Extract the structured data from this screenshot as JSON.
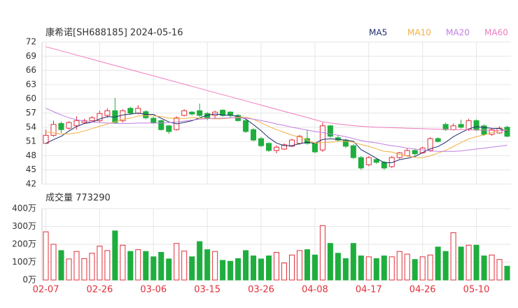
{
  "chart_data": [
    {
      "type": "candlestick",
      "title": "康希诺[SH688185] 2024-05-16",
      "categories": [
        "02-07",
        null,
        null,
        null,
        null,
        null,
        null,
        "02-26",
        null,
        null,
        null,
        null,
        null,
        null,
        "03-06",
        null,
        null,
        null,
        null,
        null,
        null,
        "03-15",
        null,
        null,
        null,
        null,
        null,
        null,
        "03-26",
        null,
        null,
        null,
        null,
        null,
        null,
        "04-08",
        null,
        null,
        null,
        null,
        null,
        null,
        "04-17",
        null,
        null,
        null,
        null,
        null,
        null,
        "04-26",
        null,
        null,
        null,
        null,
        null,
        null,
        "05-10",
        null,
        null,
        null,
        null
      ],
      "open": [
        50.6,
        52.3,
        54.8,
        53.8,
        54.3,
        55.0,
        55.4,
        55.4,
        56.5,
        57.5,
        55.4,
        58.0,
        57.0,
        57.3,
        55.9,
        55.4,
        54.3,
        53.5,
        56.5,
        57.2,
        57.5,
        56.9,
        56.5,
        57.6,
        57.2,
        56.5,
        55.4,
        53.5,
        51.6,
        50.6,
        49.1,
        49.4,
        50.0,
        50.6,
        51.6,
        50.6,
        49.2,
        54.3,
        51.8,
        51.3,
        50.1,
        47.6,
        46.1,
        47.2,
        46.6,
        45.7,
        47.6,
        48.0,
        49.1,
        48.6,
        49.1,
        51.6,
        54.6,
        53.5,
        54.6,
        53.5,
        55.4,
        54.3,
        52.5,
        52.8,
        54.0
      ],
      "high": [
        53.5,
        55.4,
        55.2,
        55.3,
        56.3,
        55.8,
        56.4,
        57.5,
        58.0,
        60.2,
        57.8,
        58.3,
        58.7,
        57.6,
        56.2,
        55.6,
        54.5,
        56.3,
        57.8,
        57.4,
        59.0,
        57.2,
        57.5,
        57.8,
        57.4,
        56.8,
        55.6,
        53.8,
        52.0,
        50.8,
        50.2,
        50.6,
        51.6,
        52.4,
        53.5,
        50.8,
        55.0,
        54.5,
        52.4,
        51.6,
        50.4,
        47.9,
        47.9,
        47.5,
        46.9,
        47.9,
        48.8,
        49.6,
        49.4,
        49.9,
        51.9,
        51.9,
        55.0,
        54.8,
        55.6,
        55.8,
        55.7,
        54.6,
        53.8,
        54.2,
        54.3
      ],
      "low": [
        50.6,
        52.0,
        52.8,
        53.5,
        53.5,
        54.7,
        55.2,
        55.0,
        56.0,
        54.8,
        55.0,
        56.6,
        56.7,
        55.7,
        54.7,
        53.3,
        52.6,
        53.3,
        56.3,
        56.5,
        56.2,
        55.5,
        55.8,
        56.2,
        56.0,
        55.2,
        52.8,
        51.0,
        49.8,
        48.8,
        48.5,
        49.2,
        49.8,
        50.3,
        50.3,
        48.5,
        48.8,
        51.8,
        51.0,
        49.6,
        47.3,
        45.0,
        45.8,
        46.3,
        45.0,
        45.4,
        47.3,
        47.8,
        48.0,
        48.4,
        48.8,
        50.8,
        53.2,
        53.3,
        53.7,
        53.2,
        53.2,
        52.2,
        52.2,
        52.6,
        51.9
      ],
      "close": [
        52.3,
        54.6,
        53.5,
        55.0,
        55.4,
        55.4,
        56.0,
        56.9,
        57.5,
        55.0,
        57.5,
        57.0,
        58.0,
        56.0,
        55.0,
        53.5,
        53.1,
        56.0,
        57.5,
        56.8,
        56.5,
        56.0,
        57.2,
        56.5,
        56.5,
        55.4,
        53.1,
        51.3,
        50.1,
        49.1,
        49.8,
        50.3,
        51.3,
        52.1,
        50.6,
        48.8,
        54.3,
        52.1,
        51.3,
        50.0,
        47.6,
        45.4,
        47.6,
        46.6,
        45.4,
        47.6,
        48.6,
        49.1,
        48.4,
        49.6,
        51.6,
        51.0,
        53.5,
        54.3,
        54.0,
        55.4,
        53.5,
        52.5,
        53.5,
        53.8,
        52.1
      ],
      "up_color": "#e0303a",
      "down_color": "#1fae3e",
      "series": [
        {
          "name": "MA5",
          "color": "#1f2d6e",
          "values": [
            50.6,
            51.4,
            52.1,
            53.2,
            54.16,
            54.78,
            55.06,
            55.74,
            56.24,
            56.16,
            56.58,
            56.78,
            57.0,
            56.7,
            56.7,
            55.9,
            55.12,
            54.72,
            55.02,
            55.38,
            55.98,
            56.56,
            56.8,
            56.6,
            56.54,
            56.32,
            55.74,
            54.56,
            53.28,
            51.8,
            50.68,
            50.12,
            50.12,
            50.52,
            50.82,
            50.62,
            51.42,
            51.58,
            51.42,
            51.3,
            51.06,
            49.28,
            48.38,
            47.44,
            46.52,
            46.52,
            47.16,
            47.46,
            47.82,
            48.66,
            49.46,
            49.94,
            50.82,
            52.0,
            52.88,
            53.64,
            54.14,
            53.94,
            53.78,
            53.74,
            53.08
          ]
        },
        {
          "name": "MA10",
          "color": "#f4b042",
          "values": [
            53.0,
            52.8,
            52.6,
            52.6,
            52.8,
            53.2,
            53.7,
            54.2,
            54.7,
            55.16,
            55.68,
            55.92,
            56.37,
            56.47,
            56.43,
            56.24,
            55.95,
            55.86,
            55.86,
            56.04,
            55.94,
            55.84,
            55.76,
            55.81,
            55.96,
            56.15,
            56.15,
            55.68,
            54.94,
            54.17,
            53.5,
            52.93,
            52.34,
            51.9,
            51.31,
            50.65,
            50.77,
            50.85,
            50.97,
            51.06,
            50.84,
            50.35,
            49.98,
            49.43,
            48.91,
            48.79,
            48.22,
            47.92,
            47.63,
            47.59,
            47.99,
            48.55,
            49.14,
            49.91,
            50.77,
            51.55,
            52.04,
            52.38,
            52.89,
            53.31,
            53.36
          ]
        },
        {
          "name": "MA20",
          "color": "#c07ee0",
          "values": [
            58.0,
            57.3,
            56.6,
            56.0,
            55.6,
            55.3,
            55.1,
            55.0,
            54.9,
            54.8,
            54.8,
            54.8,
            54.9,
            54.9,
            54.9,
            54.9,
            55.0,
            55.1,
            55.3,
            55.5,
            55.7,
            55.8,
            55.9,
            55.9,
            56.0,
            56.0,
            55.9,
            55.7,
            55.4,
            55.1,
            54.7,
            54.4,
            54.0,
            53.7,
            53.4,
            53.1,
            52.9,
            52.6,
            52.3,
            52.0,
            51.6,
            51.2,
            50.9,
            50.7,
            50.4,
            50.1,
            49.9,
            49.6,
            49.4,
            49.2,
            49.0,
            48.9,
            48.9,
            48.9,
            49.0,
            49.2,
            49.4,
            49.6,
            49.8,
            50.0,
            50.2
          ]
        },
        {
          "name": "MA60",
          "color": "#f07cc0",
          "values": [
            71.0,
            70.56,
            70.12,
            69.68,
            69.24,
            68.8,
            68.36,
            67.92,
            67.48,
            67.04,
            66.6,
            66.16,
            65.72,
            65.28,
            64.84,
            64.4,
            63.96,
            63.52,
            63.08,
            62.64,
            62.2,
            61.76,
            61.32,
            60.88,
            60.44,
            60.0,
            59.56,
            59.12,
            58.68,
            58.24,
            57.8,
            57.36,
            56.92,
            56.48,
            56.04,
            55.6,
            55.16,
            54.9,
            54.7,
            54.5,
            54.35,
            54.2,
            54.1,
            54.0,
            53.95,
            53.9,
            53.85,
            53.8,
            53.75,
            53.7,
            53.65,
            53.6,
            53.55,
            53.5,
            53.5,
            53.45,
            53.4,
            53.4,
            53.35,
            53.3,
            53.3
          ]
        }
      ],
      "ylim": [
        42,
        72
      ],
      "yticks": [
        42,
        45,
        48,
        51,
        54,
        57,
        60,
        63,
        66,
        69,
        72
      ],
      "grid": true
    },
    {
      "type": "bar",
      "title": "成交量 773290",
      "values": [
        270,
        200,
        165,
        118,
        160,
        120,
        150,
        190,
        165,
        275,
        195,
        160,
        170,
        160,
        130,
        155,
        118,
        205,
        162,
        130,
        215,
        170,
        160,
        110,
        105,
        120,
        165,
        135,
        118,
        135,
        155,
        95,
        140,
        165,
        170,
        140,
        305,
        205,
        150,
        120,
        205,
        135,
        130,
        120,
        135,
        130,
        160,
        145,
        115,
        130,
        140,
        185,
        160,
        265,
        185,
        195,
        195,
        135,
        140,
        115,
        77.329
      ],
      "ylim": [
        0,
        400
      ],
      "yticks": [
        {
          "value": 0,
          "label": "0万"
        },
        {
          "value": 100,
          "label": "100万"
        },
        {
          "value": 200,
          "label": "200万"
        },
        {
          "value": 300,
          "label": "300万"
        },
        {
          "value": 400,
          "label": "400万"
        }
      ],
      "grid": true
    }
  ]
}
